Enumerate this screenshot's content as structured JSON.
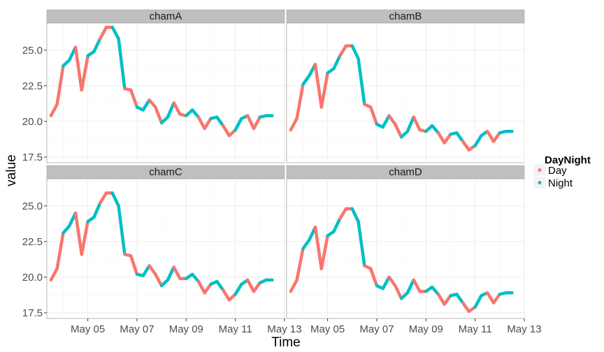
{
  "colors": {
    "day": "#F8766D",
    "night": "#00BFC4",
    "panel_bg": "#ffffff",
    "grid": "#ebebeb",
    "strip_bg": "#bfbfbf"
  },
  "chart_data": {
    "type": "line",
    "facets": [
      "chamA",
      "chamB",
      "chamC",
      "chamD"
    ],
    "xlabel": "Time",
    "ylabel": "value",
    "x_range": [
      "2014-05-03 08:00",
      "2014-05-13 00:00"
    ],
    "ylim": [
      17.1,
      26.9
    ],
    "x_ticks": [
      {
        "date": "2014-05-05",
        "label": "May 05"
      },
      {
        "date": "2014-05-07",
        "label": "May 07"
      },
      {
        "date": "2014-05-09",
        "label": "May 09"
      },
      {
        "date": "2014-05-11",
        "label": "May 11"
      },
      {
        "date": "2014-05-13",
        "label": "May 13"
      }
    ],
    "y_ticks": [
      {
        "value": 17.5,
        "label": "17.5"
      },
      {
        "value": 20.0,
        "label": "20.0"
      },
      {
        "value": 22.5,
        "label": "22.5"
      },
      {
        "value": 25.0,
        "label": "25.0"
      }
    ],
    "legend": {
      "title": "DayNight",
      "placement": "right",
      "entries": [
        "Day",
        "Night"
      ]
    },
    "series": [
      {
        "name": "chamA",
        "x": [
          "2014-05-03 12:00",
          "2014-05-03 18:00",
          "2014-05-04 00:00",
          "2014-05-04 06:00",
          "2014-05-04 12:00",
          "2014-05-04 18:00",
          "2014-05-05 00:00",
          "2014-05-05 06:00",
          "2014-05-05 12:00",
          "2014-05-05 18:00",
          "2014-05-06 00:00",
          "2014-05-06 06:00",
          "2014-05-06 12:00",
          "2014-05-06 18:00",
          "2014-05-07 00:00",
          "2014-05-07 06:00",
          "2014-05-07 12:00",
          "2014-05-07 18:00",
          "2014-05-08 00:00",
          "2014-05-08 06:00",
          "2014-05-08 12:00",
          "2014-05-08 18:00",
          "2014-05-09 00:00",
          "2014-05-09 06:00",
          "2014-05-09 12:00",
          "2014-05-09 18:00",
          "2014-05-10 00:00",
          "2014-05-10 06:00",
          "2014-05-10 12:00",
          "2014-05-10 18:00",
          "2014-05-11 00:00",
          "2014-05-11 06:00",
          "2014-05-11 12:00",
          "2014-05-11 18:00",
          "2014-05-12 00:00",
          "2014-05-12 06:00",
          "2014-05-12 12:00"
        ],
        "y": [
          20.4,
          21.2,
          23.9,
          24.3,
          25.2,
          22.2,
          24.6,
          24.9,
          25.8,
          26.6,
          26.6,
          25.8,
          22.3,
          22.2,
          21.0,
          20.8,
          21.5,
          21.0,
          19.9,
          20.3,
          21.3,
          20.5,
          20.4,
          20.8,
          20.3,
          19.5,
          20.2,
          20.3,
          19.7,
          19.0,
          19.4,
          20.2,
          20.4,
          19.5,
          20.3,
          20.4,
          20.4
        ],
        "daynight": [
          "Day",
          "Day",
          "Night",
          "Night",
          "Day",
          "Day",
          "Night",
          "Night",
          "Day",
          "Day",
          "Night",
          "Night",
          "Day",
          "Day",
          "Night",
          "Night",
          "Day",
          "Day",
          "Night",
          "Night",
          "Day",
          "Day",
          "Night",
          "Night",
          "Day",
          "Day",
          "Night",
          "Night",
          "Day",
          "Day",
          "Night",
          "Night",
          "Day",
          "Day",
          "Night",
          "Night",
          "Day"
        ]
      },
      {
        "name": "chamB",
        "x": [
          "2014-05-03 12:00",
          "2014-05-03 18:00",
          "2014-05-04 00:00",
          "2014-05-04 06:00",
          "2014-05-04 12:00",
          "2014-05-04 18:00",
          "2014-05-05 00:00",
          "2014-05-05 06:00",
          "2014-05-05 12:00",
          "2014-05-05 18:00",
          "2014-05-06 00:00",
          "2014-05-06 06:00",
          "2014-05-06 12:00",
          "2014-05-06 18:00",
          "2014-05-07 00:00",
          "2014-05-07 06:00",
          "2014-05-07 12:00",
          "2014-05-07 18:00",
          "2014-05-08 00:00",
          "2014-05-08 06:00",
          "2014-05-08 12:00",
          "2014-05-08 18:00",
          "2014-05-09 00:00",
          "2014-05-09 06:00",
          "2014-05-09 12:00",
          "2014-05-09 18:00",
          "2014-05-10 00:00",
          "2014-05-10 06:00",
          "2014-05-10 12:00",
          "2014-05-10 18:00",
          "2014-05-11 00:00",
          "2014-05-11 06:00",
          "2014-05-11 12:00",
          "2014-05-11 18:00",
          "2014-05-12 00:00",
          "2014-05-12 06:00",
          "2014-05-12 12:00"
        ],
        "y": [
          19.4,
          20.2,
          22.6,
          23.2,
          24.0,
          21.0,
          23.4,
          23.7,
          24.6,
          25.3,
          25.3,
          24.4,
          21.2,
          21.0,
          19.8,
          19.6,
          20.4,
          19.8,
          18.9,
          19.3,
          20.3,
          19.4,
          19.3,
          19.7,
          19.2,
          18.5,
          19.1,
          19.2,
          18.6,
          18.0,
          18.3,
          19.0,
          19.3,
          18.6,
          19.2,
          19.3,
          19.3
        ],
        "daynight": [
          "Day",
          "Day",
          "Night",
          "Night",
          "Day",
          "Day",
          "Night",
          "Night",
          "Day",
          "Day",
          "Night",
          "Night",
          "Day",
          "Day",
          "Night",
          "Night",
          "Day",
          "Day",
          "Night",
          "Night",
          "Day",
          "Day",
          "Night",
          "Night",
          "Day",
          "Day",
          "Night",
          "Night",
          "Day",
          "Day",
          "Night",
          "Night",
          "Day",
          "Day",
          "Night",
          "Night",
          "Day"
        ]
      },
      {
        "name": "chamC",
        "x": [
          "2014-05-03 12:00",
          "2014-05-03 18:00",
          "2014-05-04 00:00",
          "2014-05-04 06:00",
          "2014-05-04 12:00",
          "2014-05-04 18:00",
          "2014-05-05 00:00",
          "2014-05-05 06:00",
          "2014-05-05 12:00",
          "2014-05-05 18:00",
          "2014-05-06 00:00",
          "2014-05-06 06:00",
          "2014-05-06 12:00",
          "2014-05-06 18:00",
          "2014-05-07 00:00",
          "2014-05-07 06:00",
          "2014-05-07 12:00",
          "2014-05-07 18:00",
          "2014-05-08 00:00",
          "2014-05-08 06:00",
          "2014-05-08 12:00",
          "2014-05-08 18:00",
          "2014-05-09 00:00",
          "2014-05-09 06:00",
          "2014-05-09 12:00",
          "2014-05-09 18:00",
          "2014-05-10 00:00",
          "2014-05-10 06:00",
          "2014-05-10 12:00",
          "2014-05-10 18:00",
          "2014-05-11 00:00",
          "2014-05-11 06:00",
          "2014-05-11 12:00",
          "2014-05-11 18:00",
          "2014-05-12 00:00",
          "2014-05-12 06:00",
          "2014-05-12 12:00"
        ],
        "y": [
          19.8,
          20.6,
          23.1,
          23.6,
          24.5,
          21.6,
          23.9,
          24.2,
          25.2,
          25.9,
          25.9,
          25.0,
          21.6,
          21.5,
          20.2,
          20.1,
          20.8,
          20.2,
          19.4,
          19.8,
          20.7,
          19.9,
          19.9,
          20.2,
          19.7,
          18.9,
          19.5,
          19.7,
          19.1,
          18.4,
          18.8,
          19.5,
          19.8,
          19.0,
          19.6,
          19.8,
          19.8
        ],
        "daynight": [
          "Day",
          "Day",
          "Night",
          "Night",
          "Day",
          "Day",
          "Night",
          "Night",
          "Day",
          "Day",
          "Night",
          "Night",
          "Day",
          "Day",
          "Night",
          "Night",
          "Day",
          "Day",
          "Night",
          "Night",
          "Day",
          "Day",
          "Night",
          "Night",
          "Day",
          "Day",
          "Night",
          "Night",
          "Day",
          "Day",
          "Night",
          "Night",
          "Day",
          "Day",
          "Night",
          "Night",
          "Day"
        ]
      },
      {
        "name": "chamD",
        "x": [
          "2014-05-03 12:00",
          "2014-05-03 18:00",
          "2014-05-04 00:00",
          "2014-05-04 06:00",
          "2014-05-04 12:00",
          "2014-05-04 18:00",
          "2014-05-05 00:00",
          "2014-05-05 06:00",
          "2014-05-05 12:00",
          "2014-05-05 18:00",
          "2014-05-06 00:00",
          "2014-05-06 06:00",
          "2014-05-06 12:00",
          "2014-05-06 18:00",
          "2014-05-07 00:00",
          "2014-05-07 06:00",
          "2014-05-07 12:00",
          "2014-05-07 18:00",
          "2014-05-08 00:00",
          "2014-05-08 06:00",
          "2014-05-08 12:00",
          "2014-05-08 18:00",
          "2014-05-09 00:00",
          "2014-05-09 06:00",
          "2014-05-09 12:00",
          "2014-05-09 18:00",
          "2014-05-10 00:00",
          "2014-05-10 06:00",
          "2014-05-10 12:00",
          "2014-05-10 18:00",
          "2014-05-11 00:00",
          "2014-05-11 06:00",
          "2014-05-11 12:00",
          "2014-05-11 18:00",
          "2014-05-12 00:00",
          "2014-05-12 06:00",
          "2014-05-12 12:00"
        ],
        "y": [
          19.0,
          19.8,
          22.0,
          22.6,
          23.5,
          20.6,
          22.9,
          23.2,
          24.1,
          24.8,
          24.8,
          23.9,
          20.8,
          20.6,
          19.4,
          19.2,
          20.0,
          19.4,
          18.5,
          18.9,
          19.8,
          19.0,
          19.0,
          19.3,
          18.8,
          18.1,
          18.7,
          18.8,
          18.2,
          17.6,
          17.9,
          18.7,
          18.9,
          18.2,
          18.8,
          18.9,
          18.9
        ],
        "daynight": [
          "Day",
          "Day",
          "Night",
          "Night",
          "Day",
          "Day",
          "Night",
          "Night",
          "Day",
          "Day",
          "Night",
          "Night",
          "Day",
          "Day",
          "Night",
          "Night",
          "Day",
          "Day",
          "Night",
          "Night",
          "Day",
          "Day",
          "Night",
          "Night",
          "Day",
          "Day",
          "Night",
          "Night",
          "Day",
          "Day",
          "Night",
          "Night",
          "Day",
          "Day",
          "Night",
          "Night",
          "Day"
        ]
      }
    ]
  }
}
